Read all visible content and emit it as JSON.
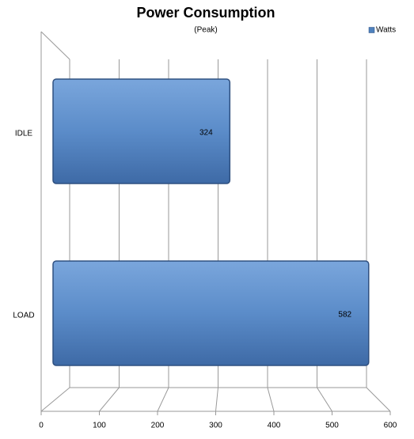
{
  "chart_data": {
    "type": "bar",
    "orientation": "horizontal",
    "title": "Power Consumption",
    "subtitle": "(Peak)",
    "categories": [
      "IDLE",
      "LOAD"
    ],
    "series": [
      {
        "name": "Watts",
        "color": "#4f81bd",
        "values": [
          324,
          582
        ]
      }
    ],
    "xlim": [
      0,
      600
    ],
    "xticks": [
      0,
      100,
      200,
      300,
      400,
      500,
      600
    ],
    "grid": true,
    "legend": "top-right"
  }
}
